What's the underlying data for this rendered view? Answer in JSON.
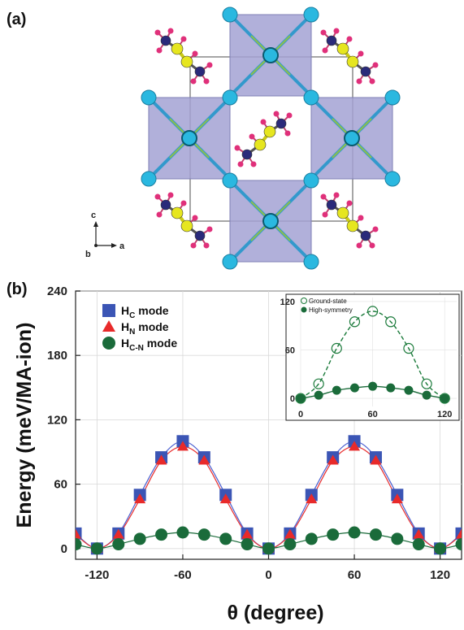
{
  "panel_a": {
    "label": "(a)",
    "axes": {
      "c": "c",
      "b": "b",
      "a": "a"
    }
  },
  "panel_b": {
    "label": "(b)"
  },
  "chart_data": [
    {
      "type": "line",
      "xlabel": "θ (degree)",
      "ylabel": "Energy (meV/MA-ion)",
      "xlim": [
        -135,
        135
      ],
      "ylim": [
        -10,
        240
      ],
      "xticks": [
        -120,
        -60,
        0,
        60,
        120
      ],
      "yticks": [
        0,
        60,
        120,
        180,
        240
      ],
      "legend_position": "top-left",
      "series": [
        {
          "name": "HC",
          "label_main": "H",
          "label_sub": "C",
          "label_tail": " mode",
          "marker": "square",
          "color": "#3b55b5",
          "x": [
            -135,
            -120,
            -105,
            -90,
            -75,
            -60,
            -45,
            -30,
            -15,
            0,
            15,
            30,
            45,
            60,
            75,
            90,
            105,
            120,
            135
          ],
          "y": [
            14,
            0,
            14,
            50,
            85,
            100,
            85,
            50,
            14,
            0,
            14,
            50,
            85,
            100,
            85,
            50,
            14,
            0,
            14
          ]
        },
        {
          "name": "HN",
          "label_main": "H",
          "label_sub": "N",
          "label_tail": " mode",
          "marker": "triangle",
          "color": "#e82a2a",
          "x": [
            -135,
            -120,
            -105,
            -90,
            -75,
            -60,
            -45,
            -30,
            -15,
            0,
            15,
            30,
            45,
            60,
            75,
            90,
            105,
            120,
            135
          ],
          "y": [
            13,
            0,
            13,
            46,
            82,
            95,
            82,
            46,
            13,
            0,
            13,
            46,
            82,
            95,
            82,
            46,
            13,
            0,
            13
          ]
        },
        {
          "name": "HC-N",
          "label_main": "H",
          "label_sub": "C-N",
          "label_tail": " mode",
          "marker": "circle",
          "color": "#1a6b3a",
          "x": [
            -135,
            -120,
            -105,
            -90,
            -75,
            -60,
            -45,
            -30,
            -15,
            0,
            15,
            30,
            45,
            60,
            75,
            90,
            105,
            120,
            135
          ],
          "y": [
            4,
            0,
            4,
            9,
            13,
            15,
            13,
            9,
            4,
            0,
            4,
            9,
            13,
            15,
            13,
            9,
            4,
            0,
            4
          ]
        }
      ]
    },
    {
      "type": "line",
      "xlim": [
        0,
        130
      ],
      "ylim": [
        -10,
        125
      ],
      "xticks": [
        0,
        60,
        120
      ],
      "yticks": [
        0,
        60,
        120
      ],
      "legend_position": "top-left",
      "series": [
        {
          "name": "Ground-state",
          "marker": "open-circle",
          "style": "dashed",
          "color": "#1a7a3a",
          "x": [
            0,
            15,
            30,
            45,
            60,
            75,
            90,
            105,
            120
          ],
          "y": [
            0,
            18,
            62,
            95,
            108,
            95,
            62,
            18,
            0
          ]
        },
        {
          "name": "High-symmetry",
          "marker": "circle",
          "style": "solid",
          "color": "#1a6b3a",
          "x": [
            0,
            15,
            30,
            45,
            60,
            75,
            90,
            105,
            120
          ],
          "y": [
            0,
            4,
            10,
            13,
            15,
            13,
            10,
            4,
            0
          ]
        }
      ]
    }
  ],
  "colors": {
    "octahedron": "#a3a2d3",
    "cation": "#2ab8e0",
    "carbon_yellow": "#e6e61f",
    "nitrogen_navy": "#2a2a7a",
    "hydrogen_pink": "#e0307a",
    "bond_blue": "#3399cc",
    "bond_green": "#8fbf4a"
  }
}
